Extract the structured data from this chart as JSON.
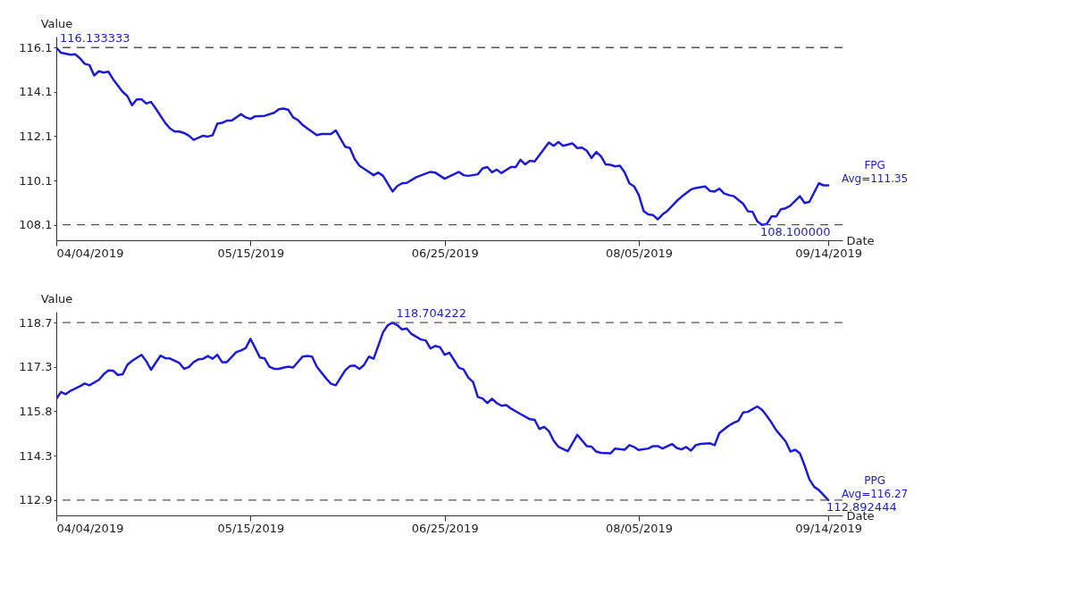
{
  "chart_data": [
    {
      "type": "line",
      "xlabel": "Date",
      "ylabel": "Value",
      "grid": false,
      "line_style": "solid",
      "xlim": [
        "2019-04-04",
        "2019-09-17"
      ],
      "ylim": [
        107.4,
        116.63
      ],
      "xticks": [
        {
          "value": "2019-04-04",
          "label": "04/04/2019"
        },
        {
          "value": "2019-05-15",
          "label": "05/15/2019"
        },
        {
          "value": "2019-06-25",
          "label": "06/25/2019"
        },
        {
          "value": "2019-08-05",
          "label": "08/05/2019"
        },
        {
          "value": "2019-09-14",
          "label": "09/14/2019"
        }
      ],
      "yticks": [
        108.1,
        {
          "value": 110.108333,
          "label": "110.1"
        },
        {
          "value": 112.116667,
          "label": "112.1"
        },
        {
          "value": 114.125,
          "label": "114.1"
        },
        {
          "value": 116.133333,
          "label": "116.1"
        }
      ],
      "ref_lines": [
        {
          "axis": "y",
          "value": 116.133333,
          "color": "#555555",
          "line_style": "dashed"
        },
        {
          "axis": "y",
          "value": 108.1,
          "color": "#555555",
          "line_style": "dashed"
        }
      ],
      "annotations": [
        {
          "text": "116.133333",
          "x": "2019-04-04",
          "y": 116.133333
        },
        {
          "text": "108.100000",
          "x": "2019-08-31",
          "y": 108.1
        },
        "Avg=111.35"
      ],
      "series": [
        {
          "name": "FPG",
          "color": "#1c1cd8",
          "x": [
            "2019-04-04",
            "2019-04-05",
            "2019-04-07",
            "2019-04-08",
            "2019-04-09",
            "2019-04-10",
            "2019-04-11",
            "2019-04-12",
            "2019-04-13",
            "2019-04-14",
            "2019-04-15",
            "2019-04-16",
            "2019-04-18",
            "2019-04-19",
            "2019-04-20",
            "2019-04-21",
            "2019-04-22",
            "2019-04-23",
            "2019-04-24",
            "2019-04-25",
            "2019-04-27",
            "2019-04-28",
            "2019-04-29",
            "2019-04-30",
            "2019-05-01",
            "2019-05-02",
            "2019-05-03",
            "2019-05-05",
            "2019-05-06",
            "2019-05-07",
            "2019-05-08",
            "2019-05-09",
            "2019-05-10",
            "2019-05-11",
            "2019-05-13",
            "2019-05-14",
            "2019-05-15",
            "2019-05-16",
            "2019-05-18",
            "2019-05-20",
            "2019-05-21",
            "2019-05-22",
            "2019-05-23",
            "2019-05-24",
            "2019-05-25",
            "2019-05-26",
            "2019-05-27",
            "2019-05-29",
            "2019-05-30",
            "2019-06-01",
            "2019-06-02",
            "2019-06-04",
            "2019-06-05",
            "2019-06-06",
            "2019-06-07",
            "2019-06-09",
            "2019-06-10",
            "2019-06-11",
            "2019-06-12",
            "2019-06-14",
            "2019-06-15",
            "2019-06-16",
            "2019-06-17",
            "2019-06-19",
            "2019-06-22",
            "2019-06-23",
            "2019-06-25",
            "2019-06-28",
            "2019-06-29",
            "2019-06-30",
            "2019-07-02",
            "2019-07-03",
            "2019-07-04",
            "2019-07-05",
            "2019-07-06",
            "2019-07-07",
            "2019-07-09",
            "2019-07-10",
            "2019-07-11",
            "2019-07-12",
            "2019-07-13",
            "2019-07-14",
            "2019-07-17",
            "2019-07-18",
            "2019-07-19",
            "2019-07-20",
            "2019-07-22",
            "2019-07-23",
            "2019-07-24",
            "2019-07-25",
            "2019-07-26",
            "2019-07-27",
            "2019-07-28",
            "2019-07-29",
            "2019-07-30",
            "2019-07-31",
            "2019-08-01",
            "2019-08-02",
            "2019-08-03",
            "2019-08-04",
            "2019-08-05",
            "2019-08-06",
            "2019-08-07",
            "2019-08-08",
            "2019-08-09",
            "2019-08-10",
            "2019-08-11",
            "2019-08-13",
            "2019-08-14",
            "2019-08-16",
            "2019-08-17",
            "2019-08-19",
            "2019-08-20",
            "2019-08-21",
            "2019-08-22",
            "2019-08-23",
            "2019-08-24",
            "2019-08-25",
            "2019-08-27",
            "2019-08-28",
            "2019-08-29",
            "2019-08-30",
            "2019-08-31",
            "2019-09-01",
            "2019-09-02",
            "2019-09-03",
            "2019-09-04",
            "2019-09-05",
            "2019-09-06",
            "2019-09-08",
            "2019-09-09",
            "2019-09-10",
            "2019-09-12",
            "2019-09-13",
            "2019-09-14"
          ],
          "values": [
            116.133333,
            115.9,
            115.81,
            115.83,
            115.65,
            115.4,
            115.34,
            114.87,
            115.06,
            115.0,
            115.04,
            114.7,
            114.13,
            113.94,
            113.52,
            113.79,
            113.79,
            113.6,
            113.67,
            113.37,
            112.72,
            112.47,
            112.33,
            112.33,
            112.26,
            112.14,
            111.95,
            112.14,
            112.1,
            112.16,
            112.68,
            112.72,
            112.82,
            112.82,
            113.12,
            112.97,
            112.9,
            113.02,
            113.04,
            113.18,
            113.34,
            113.37,
            113.31,
            112.97,
            112.85,
            112.63,
            112.47,
            112.17,
            112.22,
            112.22,
            112.38,
            111.64,
            111.58,
            111.08,
            110.78,
            110.5,
            110.35,
            110.47,
            110.32,
            109.61,
            109.86,
            109.98,
            110.0,
            110.26,
            110.5,
            110.47,
            110.19,
            110.5,
            110.35,
            110.32,
            110.39,
            110.66,
            110.72,
            110.48,
            110.6,
            110.45,
            110.72,
            110.72,
            111.05,
            110.84,
            111.0,
            110.97,
            111.83,
            111.68,
            111.85,
            111.68,
            111.79,
            111.58,
            111.6,
            111.46,
            111.13,
            111.4,
            111.21,
            110.84,
            110.82,
            110.75,
            110.78,
            110.48,
            109.98,
            109.84,
            109.45,
            108.73,
            108.57,
            108.54,
            108.35,
            108.57,
            108.73,
            109.18,
            109.37,
            109.7,
            109.77,
            109.84,
            109.64,
            109.61,
            109.74,
            109.52,
            109.45,
            109.4,
            109.06,
            108.72,
            108.69,
            108.26,
            108.1,
            108.14,
            108.48,
            108.48,
            108.81,
            108.85,
            108.97,
            109.4,
            109.09,
            109.14,
            109.98,
            109.89,
            109.89
          ]
        }
      ]
    },
    {
      "type": "line",
      "xlabel": "Date",
      "ylabel": "Value",
      "grid": false,
      "line_style": "solid",
      "xlim": [
        "2019-04-04",
        "2019-09-17"
      ],
      "ylim": [
        112.39,
        119.06
      ],
      "xticks": [
        {
          "value": "2019-04-04",
          "label": "04/04/2019"
        },
        {
          "value": "2019-05-15",
          "label": "05/15/2019"
        },
        {
          "value": "2019-06-25",
          "label": "06/25/2019"
        },
        {
          "value": "2019-08-05",
          "label": "08/05/2019"
        },
        {
          "value": "2019-09-14",
          "label": "09/14/2019"
        }
      ],
      "yticks": [
        {
          "value": 112.892444,
          "label": "112.9"
        },
        {
          "value": 114.345389,
          "label": "114.3"
        },
        {
          "value": 115.798333,
          "label": "115.8"
        },
        {
          "value": 117.251278,
          "label": "117.3"
        },
        {
          "value": 118.704222,
          "label": "118.7"
        }
      ],
      "ref_lines": [
        {
          "axis": "y",
          "value": 118.704222,
          "color": "#555555",
          "line_style": "dashed"
        },
        {
          "axis": "y",
          "value": 112.892444,
          "color": "#555555",
          "line_style": "dashed"
        }
      ],
      "annotations": [
        {
          "text": "118.704222",
          "x": "2019-06-14",
          "y": 118.704222
        },
        {
          "text": "112.892444",
          "x": "2019-09-14",
          "y": 112.892444
        },
        "Avg=116.27"
      ],
      "series": [
        {
          "name": "PPG",
          "color": "#1c1cd8",
          "x": [
            "2019-04-04",
            "2019-04-05",
            "2019-04-06",
            "2019-04-07",
            "2019-04-09",
            "2019-04-10",
            "2019-04-11",
            "2019-04-13",
            "2019-04-14",
            "2019-04-15",
            "2019-04-16",
            "2019-04-17",
            "2019-04-18",
            "2019-04-19",
            "2019-04-20",
            "2019-04-22",
            "2019-04-23",
            "2019-04-24",
            "2019-04-26",
            "2019-04-27",
            "2019-04-28",
            "2019-04-30",
            "2019-05-01",
            "2019-05-02",
            "2019-05-03",
            "2019-05-04",
            "2019-05-05",
            "2019-05-06",
            "2019-05-07",
            "2019-05-08",
            "2019-05-09",
            "2019-05-10",
            "2019-05-12",
            "2019-05-13",
            "2019-05-14",
            "2019-05-15",
            "2019-05-16",
            "2019-05-17",
            "2019-05-18",
            "2019-05-19",
            "2019-05-20",
            "2019-05-21",
            "2019-05-22",
            "2019-05-23",
            "2019-05-24",
            "2019-05-26",
            "2019-05-27",
            "2019-05-28",
            "2019-05-29",
            "2019-05-31",
            "2019-06-01",
            "2019-06-02",
            "2019-06-04",
            "2019-06-05",
            "2019-06-06",
            "2019-06-07",
            "2019-06-08",
            "2019-06-09",
            "2019-06-10",
            "2019-06-11",
            "2019-06-12",
            "2019-06-13",
            "2019-06-14",
            "2019-06-15",
            "2019-06-16",
            "2019-06-17",
            "2019-06-18",
            "2019-06-20",
            "2019-06-21",
            "2019-06-22",
            "2019-06-23",
            "2019-06-24",
            "2019-06-25",
            "2019-06-26",
            "2019-06-28",
            "2019-06-29",
            "2019-06-30",
            "2019-07-01",
            "2019-07-02",
            "2019-07-03",
            "2019-07-04",
            "2019-07-05",
            "2019-07-06",
            "2019-07-07",
            "2019-07-08",
            "2019-07-09",
            "2019-07-11",
            "2019-07-13",
            "2019-07-14",
            "2019-07-15",
            "2019-07-16",
            "2019-07-17",
            "2019-07-18",
            "2019-07-19",
            "2019-07-21",
            "2019-07-23",
            "2019-07-25",
            "2019-07-26",
            "2019-07-27",
            "2019-07-28",
            "2019-07-30",
            "2019-07-31",
            "2019-08-02",
            "2019-08-03",
            "2019-08-04",
            "2019-08-05",
            "2019-08-07",
            "2019-08-08",
            "2019-08-09",
            "2019-08-10",
            "2019-08-12",
            "2019-08-13",
            "2019-08-14",
            "2019-08-15",
            "2019-08-16",
            "2019-08-17",
            "2019-08-18",
            "2019-08-20",
            "2019-08-21",
            "2019-08-22",
            "2019-08-24",
            "2019-08-25",
            "2019-08-26",
            "2019-08-27",
            "2019-08-28",
            "2019-08-30",
            "2019-08-31",
            "2019-09-01",
            "2019-09-02",
            "2019-09-03",
            "2019-09-05",
            "2019-09-06",
            "2019-09-07",
            "2019-09-08",
            "2019-09-09",
            "2019-09-10",
            "2019-09-11",
            "2019-09-12",
            "2019-09-14"
          ],
          "values": [
            116.21,
            116.43,
            116.36,
            116.47,
            116.62,
            116.71,
            116.65,
            116.83,
            117.01,
            117.14,
            117.13,
            116.99,
            117.01,
            117.32,
            117.45,
            117.65,
            117.44,
            117.16,
            117.62,
            117.54,
            117.53,
            117.38,
            117.19,
            117.25,
            117.41,
            117.5,
            117.52,
            117.61,
            117.52,
            117.65,
            117.41,
            117.41,
            117.74,
            117.79,
            117.87,
            118.17,
            117.87,
            117.56,
            117.53,
            117.26,
            117.19,
            117.19,
            117.23,
            117.26,
            117.23,
            117.59,
            117.61,
            117.59,
            117.26,
            116.87,
            116.7,
            116.65,
            117.14,
            117.28,
            117.3,
            117.19,
            117.32,
            117.59,
            117.52,
            117.95,
            118.39,
            118.62,
            118.704222,
            118.62,
            118.48,
            118.51,
            118.33,
            118.15,
            118.12,
            117.86,
            117.94,
            117.9,
            117.65,
            117.72,
            117.23,
            117.17,
            116.9,
            116.76,
            116.27,
            116.22,
            116.07,
            116.21,
            116.07,
            115.98,
            116.0,
            115.89,
            115.71,
            115.54,
            115.52,
            115.22,
            115.29,
            115.15,
            114.84,
            114.64,
            114.49,
            115.03,
            114.66,
            114.64,
            114.48,
            114.44,
            114.42,
            114.58,
            114.54,
            114.69,
            114.63,
            114.53,
            114.58,
            114.66,
            114.66,
            114.58,
            114.73,
            114.6,
            114.55,
            114.63,
            114.51,
            114.69,
            114.73,
            114.75,
            114.69,
            115.09,
            115.33,
            115.42,
            115.49,
            115.76,
            115.78,
            115.96,
            115.85,
            115.65,
            115.43,
            115.18,
            114.81,
            114.48,
            114.54,
            114.42,
            114.02,
            113.57,
            113.33,
            113.22,
            112.892444
          ]
        }
      ]
    }
  ]
}
